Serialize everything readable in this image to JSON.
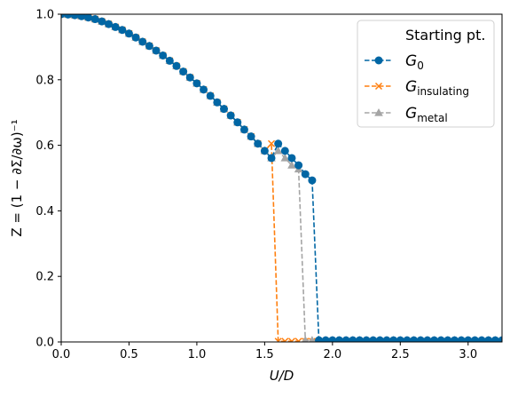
{
  "chart_data": {
    "type": "line",
    "xlabel": "U/D",
    "ylabel": "Z = (1 − ∂Σ/∂ω)⁻¹",
    "xlim": [
      0.0,
      3.25
    ],
    "ylim": [
      0.0,
      1.0
    ],
    "x_ticks": [
      "0.0",
      "0.5",
      "1.0",
      "1.5",
      "2.0",
      "2.5",
      "3.0"
    ],
    "y_ticks": [
      "0.0",
      "0.2",
      "0.4",
      "0.6",
      "0.8",
      "1.0"
    ],
    "grid": false,
    "legend": {
      "placement": "top-right",
      "title": "Starting pt.",
      "entries": [
        {
          "main": "G",
          "sub": "0"
        },
        {
          "main": "G",
          "sub": "insulating"
        },
        {
          "main": "G",
          "sub": "metal"
        }
      ]
    },
    "series": [
      {
        "key": "g0",
        "color": "#0066a4",
        "marker": "circle",
        "line": "dashed",
        "points": [
          [
            0.0,
            1.0
          ],
          [
            0.05,
            0.999
          ],
          [
            0.1,
            0.997
          ],
          [
            0.15,
            0.994
          ],
          [
            0.2,
            0.99
          ],
          [
            0.25,
            0.985
          ],
          [
            0.3,
            0.978
          ],
          [
            0.35,
            0.97
          ],
          [
            0.4,
            0.961
          ],
          [
            0.45,
            0.952
          ],
          [
            0.5,
            0.941
          ],
          [
            0.55,
            0.929
          ],
          [
            0.6,
            0.916
          ],
          [
            0.65,
            0.903
          ],
          [
            0.7,
            0.889
          ],
          [
            0.75,
            0.874
          ],
          [
            0.8,
            0.858
          ],
          [
            0.85,
            0.842
          ],
          [
            0.9,
            0.825
          ],
          [
            0.95,
            0.807
          ],
          [
            1.0,
            0.789
          ],
          [
            1.05,
            0.77
          ],
          [
            1.1,
            0.751
          ],
          [
            1.15,
            0.731
          ],
          [
            1.2,
            0.711
          ],
          [
            1.25,
            0.691
          ],
          [
            1.3,
            0.67
          ],
          [
            1.35,
            0.648
          ],
          [
            1.4,
            0.627
          ],
          [
            1.45,
            0.605
          ],
          [
            1.5,
            0.583
          ],
          [
            1.55,
            0.561
          ],
          [
            1.6,
            0.605
          ],
          [
            1.65,
            0.583
          ],
          [
            1.7,
            0.561
          ],
          [
            1.75,
            0.539
          ],
          [
            1.8,
            0.512
          ],
          [
            1.85,
            0.493
          ],
          [
            1.9,
            0.005
          ],
          [
            1.95,
            0.005
          ],
          [
            2.0,
            0.005
          ],
          [
            2.05,
            0.005
          ],
          [
            2.1,
            0.005
          ],
          [
            2.15,
            0.005
          ],
          [
            2.2,
            0.005
          ],
          [
            2.25,
            0.005
          ],
          [
            2.3,
            0.005
          ],
          [
            2.35,
            0.005
          ],
          [
            2.4,
            0.005
          ],
          [
            2.45,
            0.005
          ],
          [
            2.5,
            0.005
          ],
          [
            2.55,
            0.005
          ],
          [
            2.6,
            0.005
          ],
          [
            2.65,
            0.005
          ],
          [
            2.7,
            0.005
          ],
          [
            2.75,
            0.005
          ],
          [
            2.8,
            0.005
          ],
          [
            2.85,
            0.005
          ],
          [
            2.9,
            0.005
          ],
          [
            2.95,
            0.005
          ],
          [
            3.0,
            0.005
          ],
          [
            3.05,
            0.005
          ],
          [
            3.1,
            0.005
          ],
          [
            3.15,
            0.005
          ],
          [
            3.2,
            0.005
          ],
          [
            3.25,
            0.005
          ]
        ]
      },
      {
        "key": "ginsulating",
        "color": "#ff7f0e",
        "marker": "x",
        "line": "dashed",
        "points": [
          [
            0.0,
            1.0
          ],
          [
            0.05,
            0.999
          ],
          [
            0.1,
            0.997
          ],
          [
            0.15,
            0.994
          ],
          [
            0.2,
            0.99
          ],
          [
            0.25,
            0.985
          ],
          [
            0.3,
            0.978
          ],
          [
            0.35,
            0.97
          ],
          [
            0.4,
            0.961
          ],
          [
            0.45,
            0.952
          ],
          [
            0.5,
            0.941
          ],
          [
            0.55,
            0.929
          ],
          [
            0.6,
            0.916
          ],
          [
            0.65,
            0.903
          ],
          [
            0.7,
            0.889
          ],
          [
            0.75,
            0.874
          ],
          [
            0.8,
            0.858
          ],
          [
            0.85,
            0.842
          ],
          [
            0.9,
            0.825
          ],
          [
            0.95,
            0.807
          ],
          [
            1.0,
            0.789
          ],
          [
            1.05,
            0.77
          ],
          [
            1.1,
            0.751
          ],
          [
            1.15,
            0.731
          ],
          [
            1.2,
            0.711
          ],
          [
            1.25,
            0.691
          ],
          [
            1.3,
            0.67
          ],
          [
            1.35,
            0.648
          ],
          [
            1.4,
            0.627
          ],
          [
            1.45,
            0.605
          ],
          [
            1.5,
            0.583
          ],
          [
            1.55,
            0.605
          ],
          [
            1.6,
            0.002
          ],
          [
            1.65,
            0.002
          ],
          [
            1.7,
            0.002
          ],
          [
            1.75,
            0.002
          ],
          [
            1.8,
            0.002
          ],
          [
            1.85,
            0.002
          ],
          [
            1.9,
            0.002
          ],
          [
            1.95,
            0.002
          ],
          [
            2.0,
            0.002
          ],
          [
            2.05,
            0.002
          ],
          [
            2.1,
            0.002
          ],
          [
            2.15,
            0.002
          ],
          [
            2.2,
            0.002
          ],
          [
            2.25,
            0.002
          ],
          [
            2.3,
            0.002
          ],
          [
            2.35,
            0.002
          ],
          [
            2.4,
            0.002
          ],
          [
            2.45,
            0.002
          ],
          [
            2.5,
            0.002
          ],
          [
            2.55,
            0.002
          ],
          [
            2.6,
            0.002
          ],
          [
            2.65,
            0.002
          ],
          [
            2.7,
            0.002
          ],
          [
            2.75,
            0.002
          ],
          [
            2.8,
            0.002
          ],
          [
            2.85,
            0.002
          ],
          [
            2.9,
            0.002
          ],
          [
            2.95,
            0.002
          ],
          [
            3.0,
            0.002
          ],
          [
            3.05,
            0.002
          ],
          [
            3.1,
            0.002
          ],
          [
            3.15,
            0.002
          ],
          [
            3.2,
            0.002
          ],
          [
            3.25,
            0.002
          ]
        ]
      },
      {
        "key": "gmetal",
        "color": "#a5a5a5",
        "marker": "triangle",
        "line": "dashed",
        "points": [
          [
            0.0,
            1.0
          ],
          [
            0.05,
            0.999
          ],
          [
            0.1,
            0.997
          ],
          [
            0.15,
            0.994
          ],
          [
            0.2,
            0.99
          ],
          [
            0.25,
            0.985
          ],
          [
            0.3,
            0.978
          ],
          [
            0.35,
            0.97
          ],
          [
            0.4,
            0.961
          ],
          [
            0.45,
            0.952
          ],
          [
            0.5,
            0.941
          ],
          [
            0.55,
            0.929
          ],
          [
            0.6,
            0.916
          ],
          [
            0.65,
            0.903
          ],
          [
            0.7,
            0.889
          ],
          [
            0.75,
            0.874
          ],
          [
            0.8,
            0.858
          ],
          [
            0.85,
            0.842
          ],
          [
            0.9,
            0.825
          ],
          [
            0.95,
            0.807
          ],
          [
            1.0,
            0.789
          ],
          [
            1.05,
            0.77
          ],
          [
            1.1,
            0.751
          ],
          [
            1.15,
            0.731
          ],
          [
            1.2,
            0.711
          ],
          [
            1.25,
            0.691
          ],
          [
            1.3,
            0.67
          ],
          [
            1.35,
            0.648
          ],
          [
            1.4,
            0.627
          ],
          [
            1.45,
            0.605
          ],
          [
            1.5,
            0.583
          ],
          [
            1.55,
            0.561
          ],
          [
            1.6,
            0.583
          ],
          [
            1.65,
            0.561
          ],
          [
            1.7,
            0.539
          ],
          [
            1.75,
            0.527
          ],
          [
            1.8,
            0.005
          ],
          [
            1.85,
            0.005
          ],
          [
            1.9,
            0.005
          ],
          [
            1.95,
            0.005
          ],
          [
            2.0,
            0.005
          ],
          [
            2.05,
            0.005
          ],
          [
            2.1,
            0.005
          ],
          [
            2.15,
            0.005
          ],
          [
            2.2,
            0.005
          ],
          [
            2.25,
            0.005
          ],
          [
            2.3,
            0.005
          ],
          [
            2.35,
            0.005
          ],
          [
            2.4,
            0.005
          ],
          [
            2.45,
            0.005
          ],
          [
            2.5,
            0.005
          ],
          [
            2.55,
            0.005
          ],
          [
            2.6,
            0.005
          ],
          [
            2.65,
            0.005
          ],
          [
            2.7,
            0.005
          ],
          [
            2.75,
            0.005
          ],
          [
            2.8,
            0.005
          ],
          [
            2.85,
            0.005
          ],
          [
            2.9,
            0.005
          ],
          [
            2.95,
            0.005
          ],
          [
            3.0,
            0.005
          ],
          [
            3.05,
            0.005
          ],
          [
            3.1,
            0.005
          ],
          [
            3.15,
            0.005
          ],
          [
            3.2,
            0.005
          ],
          [
            3.25,
            0.005
          ]
        ]
      }
    ]
  }
}
